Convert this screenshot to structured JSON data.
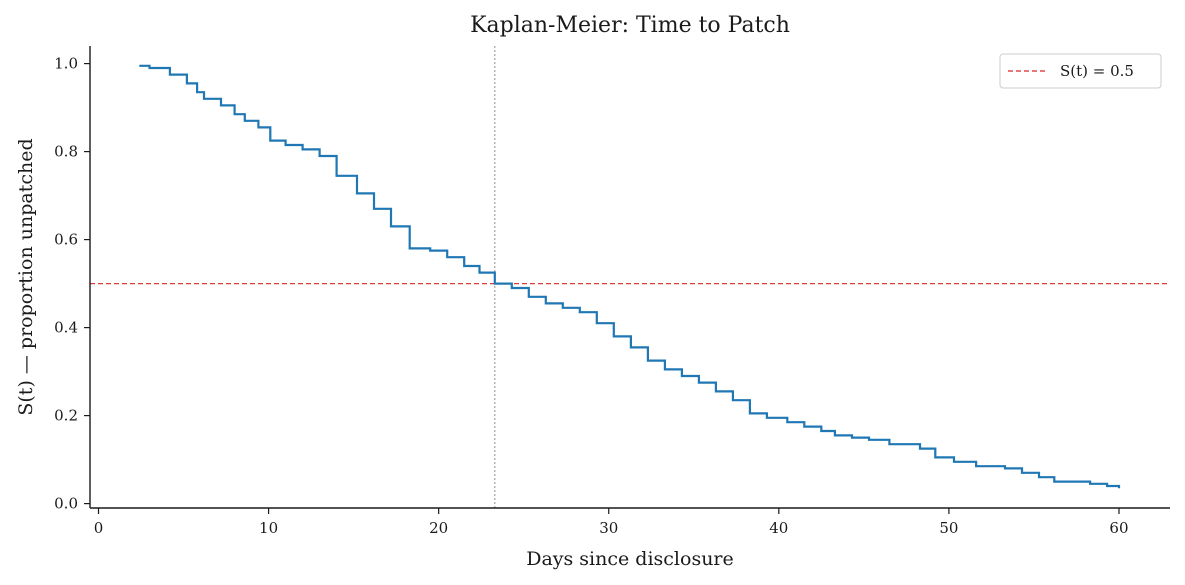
{
  "chart_data": {
    "type": "line",
    "title": "Kaplan-Meier: Time to Patch",
    "xlabel": "Days since disclosure",
    "ylabel": "S(t) — proportion unpatched",
    "xlim": [
      -0.5,
      63
    ],
    "ylim": [
      -0.01,
      1.04
    ],
    "xticks": [
      0,
      10,
      20,
      30,
      40,
      50,
      60
    ],
    "yticks": [
      0.0,
      0.2,
      0.4,
      0.6,
      0.8,
      1.0
    ],
    "grid": false,
    "legend_position": "top-right",
    "series": [
      {
        "style": "step",
        "color": "#1f77b4",
        "x": [
          2.4,
          3.0,
          4.2,
          5.2,
          5.8,
          6.2,
          7.2,
          8.0,
          8.6,
          9.4,
          10.1,
          11.0,
          12.0,
          13.0,
          14.0,
          15.2,
          16.2,
          17.2,
          18.3,
          19.5,
          20.5,
          21.5,
          22.4,
          23.3,
          24.3,
          25.3,
          26.3,
          27.3,
          28.3,
          29.3,
          30.3,
          31.3,
          32.3,
          33.3,
          34.3,
          35.3,
          36.3,
          37.3,
          38.3,
          39.3,
          40.5,
          41.5,
          42.5,
          43.3,
          44.3,
          45.3,
          46.5,
          48.3,
          49.2,
          50.3,
          51.6,
          53.3,
          54.3,
          55.3,
          56.2,
          58.3,
          59.3,
          60.0
        ],
        "y": [
          0.995,
          0.99,
          0.975,
          0.955,
          0.935,
          0.92,
          0.905,
          0.885,
          0.87,
          0.855,
          0.825,
          0.815,
          0.805,
          0.79,
          0.745,
          0.705,
          0.67,
          0.63,
          0.58,
          0.575,
          0.56,
          0.54,
          0.525,
          0.5,
          0.49,
          0.47,
          0.455,
          0.445,
          0.435,
          0.41,
          0.38,
          0.355,
          0.325,
          0.305,
          0.29,
          0.275,
          0.255,
          0.235,
          0.205,
          0.195,
          0.185,
          0.175,
          0.165,
          0.155,
          0.15,
          0.145,
          0.135,
          0.125,
          0.105,
          0.095,
          0.085,
          0.08,
          0.07,
          0.06,
          0.05,
          0.045,
          0.04,
          0.035
        ]
      }
    ],
    "reference_lines": [
      {
        "orientation": "horizontal",
        "value": 0.5,
        "color": "#d62728",
        "style": "dashed",
        "label": "S(t) = 0.5"
      },
      {
        "orientation": "vertical",
        "value": 23.3,
        "color": "#999999",
        "style": "dotted"
      }
    ],
    "legend": [
      {
        "label": "S(t) = 0.5",
        "color": "#d62728",
        "style": "dashed"
      }
    ]
  }
}
